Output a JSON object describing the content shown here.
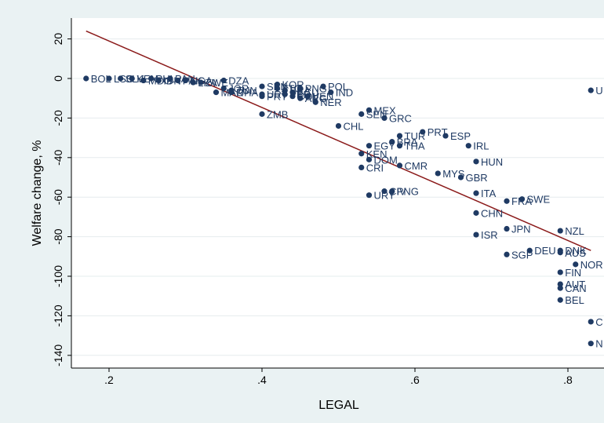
{
  "chart_data": {
    "type": "scatter",
    "title": "",
    "xlabel": "LEGAL",
    "ylabel": "Welfare change, %",
    "xlim": [
      0.17,
      0.835
    ],
    "ylim": [
      -145,
      27
    ],
    "xticks": [
      0.2,
      0.4,
      0.6,
      0.8
    ],
    "xtick_labels": [
      ".2",
      ".4",
      ".6",
      ".8"
    ],
    "yticks": [
      20,
      0,
      -20,
      -40,
      -60,
      -80,
      -100,
      -120,
      -140
    ],
    "ytick_labels": [
      "20",
      "0",
      "-20",
      "-40",
      "-60",
      "-80",
      "-100",
      "-120",
      "-140"
    ],
    "grid": "horizontal",
    "legend": "none",
    "colors": {
      "marker": "#1f3a63",
      "fit_line": "#8b1a1a",
      "plot_bg": "#ffffff",
      "outer_bg": "#eaf2f3",
      "grid": "#e6ecee"
    },
    "fit_line": {
      "x": [
        0.17,
        0.83
      ],
      "y": [
        24,
        -87
      ]
    },
    "points": [
      {
        "label": "BOL",
        "x": 0.17,
        "y": 0
      },
      {
        "label": "LSO",
        "x": 0.2,
        "y": 0
      },
      {
        "label": "SLV",
        "x": 0.215,
        "y": 0
      },
      {
        "label": "KEN",
        "x": 0.23,
        "y": 0
      },
      {
        "label": "MDG",
        "x": 0.245,
        "y": -1
      },
      {
        "label": "PHL",
        "x": 0.255,
        "y": 0
      },
      {
        "label": "IDN",
        "x": 0.265,
        "y": -1
      },
      {
        "label": "PAN",
        "x": 0.28,
        "y": 0
      },
      {
        "label": "PAK",
        "x": 0.29,
        "y": -1
      },
      {
        "label": "NGA",
        "x": 0.3,
        "y": -1
      },
      {
        "label": "LKA",
        "x": 0.31,
        "y": -2
      },
      {
        "label": "ZWE",
        "x": 0.32,
        "y": -2
      },
      {
        "label": "DZA",
        "x": 0.35,
        "y": -1
      },
      {
        "label": "JOR",
        "x": 0.35,
        "y": -5
      },
      {
        "label": "TUN",
        "x": 0.36,
        "y": -6
      },
      {
        "label": "MAR",
        "x": 0.34,
        "y": -7
      },
      {
        "label": "GHA",
        "x": 0.36,
        "y": -7
      },
      {
        "label": "PRY",
        "x": 0.4,
        "y": -9
      },
      {
        "label": "URY",
        "x": 0.4,
        "y": -8
      },
      {
        "label": "SEN",
        "x": 0.4,
        "y": -4
      },
      {
        "label": "KOR",
        "x": 0.42,
        "y": -3
      },
      {
        "label": "TTO",
        "x": 0.42,
        "y": -5
      },
      {
        "label": "BRA",
        "x": 0.43,
        "y": -6
      },
      {
        "label": "PER",
        "x": 0.43,
        "y": -8
      },
      {
        "label": "ECU",
        "x": 0.44,
        "y": -7
      },
      {
        "label": "COL",
        "x": 0.44,
        "y": -9
      },
      {
        "label": "ARG",
        "x": 0.45,
        "y": -10
      },
      {
        "label": "VEN",
        "x": 0.46,
        "y": -9
      },
      {
        "label": "PNG",
        "x": 0.45,
        "y": -5
      },
      {
        "label": "POL",
        "x": 0.48,
        "y": -4
      },
      {
        "label": "IND",
        "x": 0.49,
        "y": -7
      },
      {
        "label": "NER",
        "x": 0.47,
        "y": -12
      },
      {
        "label": "ZMB",
        "x": 0.4,
        "y": -18
      },
      {
        "label": "CHL",
        "x": 0.5,
        "y": -24
      },
      {
        "label": "MEX",
        "x": 0.54,
        "y": -16
      },
      {
        "label": "SEN",
        "x": 0.53,
        "y": -18
      },
      {
        "label": "GRC",
        "x": 0.56,
        "y": -20
      },
      {
        "label": "PRT",
        "x": 0.61,
        "y": -27
      },
      {
        "label": "ESP",
        "x": 0.64,
        "y": -29
      },
      {
        "label": "TUR",
        "x": 0.58,
        "y": -29
      },
      {
        "label": "BRA",
        "x": 0.57,
        "y": -32
      },
      {
        "label": "THA",
        "x": 0.58,
        "y": -34
      },
      {
        "label": "EGY",
        "x": 0.54,
        "y": -34
      },
      {
        "label": "IRL",
        "x": 0.67,
        "y": -34
      },
      {
        "label": "KEN",
        "x": 0.53,
        "y": -38
      },
      {
        "label": "DOM",
        "x": 0.54,
        "y": -41
      },
      {
        "label": "CRI",
        "x": 0.53,
        "y": -45
      },
      {
        "label": "CMR",
        "x": 0.58,
        "y": -44
      },
      {
        "label": "HUN",
        "x": 0.68,
        "y": -42
      },
      {
        "label": "MYS",
        "x": 0.63,
        "y": -48
      },
      {
        "label": "GBR",
        "x": 0.66,
        "y": -50
      },
      {
        "label": "URY",
        "x": 0.54,
        "y": -59
      },
      {
        "label": "CIV",
        "x": 0.56,
        "y": -57
      },
      {
        "label": "PNG",
        "x": 0.57,
        "y": -57
      },
      {
        "label": "ITA",
        "x": 0.68,
        "y": -58
      },
      {
        "label": "FRA",
        "x": 0.72,
        "y": -62
      },
      {
        "label": "SWE",
        "x": 0.74,
        "y": -61
      },
      {
        "label": "CHN",
        "x": 0.68,
        "y": -68
      },
      {
        "label": "JPN",
        "x": 0.72,
        "y": -76
      },
      {
        "label": "ISR",
        "x": 0.68,
        "y": -79
      },
      {
        "label": "NZL",
        "x": 0.79,
        "y": -77
      },
      {
        "label": "SGP",
        "x": 0.72,
        "y": -89
      },
      {
        "label": "DEU",
        "x": 0.75,
        "y": -87
      },
      {
        "label": "DNK",
        "x": 0.79,
        "y": -87
      },
      {
        "label": "AUS",
        "x": 0.79,
        "y": -88
      },
      {
        "label": "NOR",
        "x": 0.81,
        "y": -94
      },
      {
        "label": "FIN",
        "x": 0.79,
        "y": -98
      },
      {
        "label": "AUT",
        "x": 0.79,
        "y": -104
      },
      {
        "label": "CAN",
        "x": 0.79,
        "y": -106
      },
      {
        "label": "BEL",
        "x": 0.79,
        "y": -112
      },
      {
        "label": "U",
        "x": 0.83,
        "y": -6
      },
      {
        "label": "C",
        "x": 0.83,
        "y": -123
      },
      {
        "label": "N",
        "x": 0.83,
        "y": -134
      }
    ]
  }
}
